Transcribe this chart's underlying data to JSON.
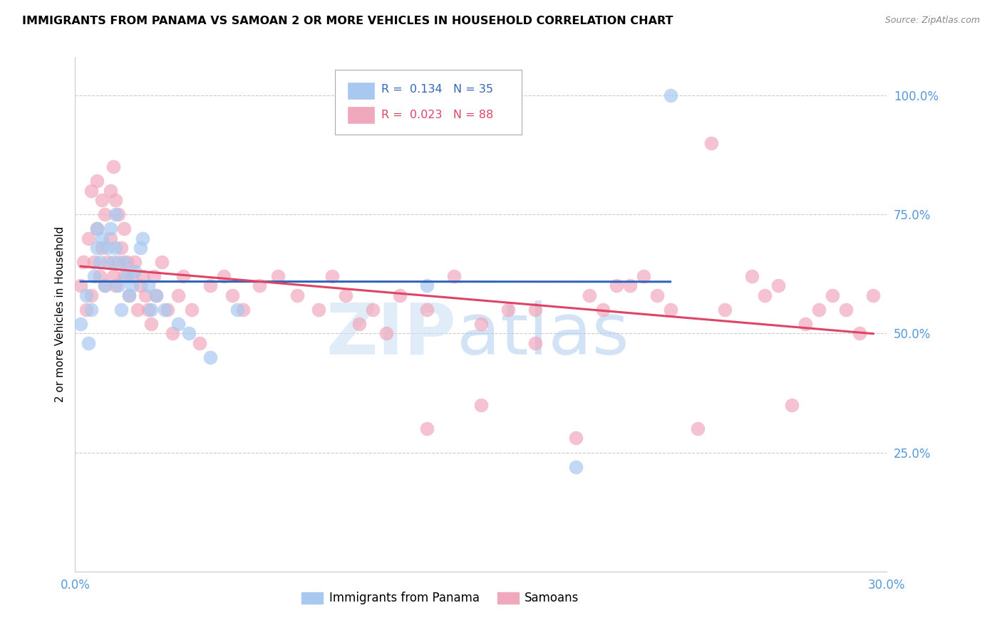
{
  "title": "IMMIGRANTS FROM PANAMA VS SAMOAN 2 OR MORE VEHICLES IN HOUSEHOLD CORRELATION CHART",
  "source_text": "Source: ZipAtlas.com",
  "ylabel": "2 or more Vehicles in Household",
  "xlim": [
    0.0,
    0.3
  ],
  "ylim": [
    0.0,
    1.08
  ],
  "xticks": [
    0.0,
    0.05,
    0.1,
    0.15,
    0.2,
    0.25,
    0.3
  ],
  "yticks": [
    0.0,
    0.25,
    0.5,
    0.75,
    1.0
  ],
  "legend_blue_r": "0.134",
  "legend_blue_n": "35",
  "legend_pink_r": "0.023",
  "legend_pink_n": "88",
  "blue_color": "#a8c8f0",
  "pink_color": "#f0a8bc",
  "blue_line_color": "#3366bb",
  "pink_line_color": "#dd4466",
  "axis_tick_color": "#5599dd",
  "grid_color": "#cccccc",
  "blue_scatter_x": [
    0.002,
    0.004,
    0.005,
    0.006,
    0.007,
    0.008,
    0.008,
    0.009,
    0.01,
    0.011,
    0.012,
    0.013,
    0.014,
    0.015,
    0.015,
    0.016,
    0.017,
    0.018,
    0.019,
    0.02,
    0.021,
    0.022,
    0.024,
    0.025,
    0.027,
    0.028,
    0.03,
    0.033,
    0.038,
    0.042,
    0.05,
    0.06,
    0.13,
    0.185,
    0.22
  ],
  "blue_scatter_y": [
    0.52,
    0.58,
    0.48,
    0.55,
    0.62,
    0.68,
    0.72,
    0.65,
    0.7,
    0.6,
    0.68,
    0.72,
    0.65,
    0.68,
    0.75,
    0.6,
    0.55,
    0.65,
    0.62,
    0.58,
    0.6,
    0.63,
    0.68,
    0.7,
    0.6,
    0.55,
    0.58,
    0.55,
    0.52,
    0.5,
    0.45,
    0.55,
    0.6,
    0.22,
    1.0
  ],
  "pink_scatter_x": [
    0.002,
    0.003,
    0.004,
    0.005,
    0.006,
    0.006,
    0.007,
    0.008,
    0.008,
    0.009,
    0.01,
    0.01,
    0.011,
    0.011,
    0.012,
    0.013,
    0.013,
    0.014,
    0.014,
    0.015,
    0.015,
    0.016,
    0.016,
    0.017,
    0.018,
    0.018,
    0.019,
    0.02,
    0.021,
    0.022,
    0.023,
    0.024,
    0.025,
    0.026,
    0.027,
    0.028,
    0.029,
    0.03,
    0.032,
    0.034,
    0.036,
    0.038,
    0.04,
    0.043,
    0.046,
    0.05,
    0.055,
    0.058,
    0.062,
    0.068,
    0.075,
    0.082,
    0.09,
    0.095,
    0.1,
    0.105,
    0.11,
    0.115,
    0.12,
    0.13,
    0.14,
    0.15,
    0.16,
    0.17,
    0.19,
    0.2,
    0.21,
    0.22,
    0.23,
    0.24,
    0.25,
    0.255,
    0.26,
    0.265,
    0.27,
    0.275,
    0.28,
    0.285,
    0.29,
    0.295,
    0.13,
    0.15,
    0.17,
    0.185,
    0.195,
    0.205,
    0.215,
    0.235
  ],
  "pink_scatter_y": [
    0.6,
    0.65,
    0.55,
    0.7,
    0.58,
    0.8,
    0.65,
    0.72,
    0.82,
    0.62,
    0.68,
    0.78,
    0.6,
    0.75,
    0.65,
    0.7,
    0.8,
    0.62,
    0.85,
    0.6,
    0.78,
    0.65,
    0.75,
    0.68,
    0.62,
    0.72,
    0.65,
    0.58,
    0.62,
    0.65,
    0.55,
    0.6,
    0.62,
    0.58,
    0.55,
    0.52,
    0.62,
    0.58,
    0.65,
    0.55,
    0.5,
    0.58,
    0.62,
    0.55,
    0.48,
    0.6,
    0.62,
    0.58,
    0.55,
    0.6,
    0.62,
    0.58,
    0.55,
    0.62,
    0.58,
    0.52,
    0.55,
    0.5,
    0.58,
    0.55,
    0.62,
    0.52,
    0.55,
    0.48,
    0.58,
    0.6,
    0.62,
    0.55,
    0.3,
    0.55,
    0.62,
    0.58,
    0.6,
    0.35,
    0.52,
    0.55,
    0.58,
    0.55,
    0.5,
    0.58,
    0.3,
    0.35,
    0.55,
    0.28,
    0.55,
    0.6,
    0.58,
    0.9
  ]
}
